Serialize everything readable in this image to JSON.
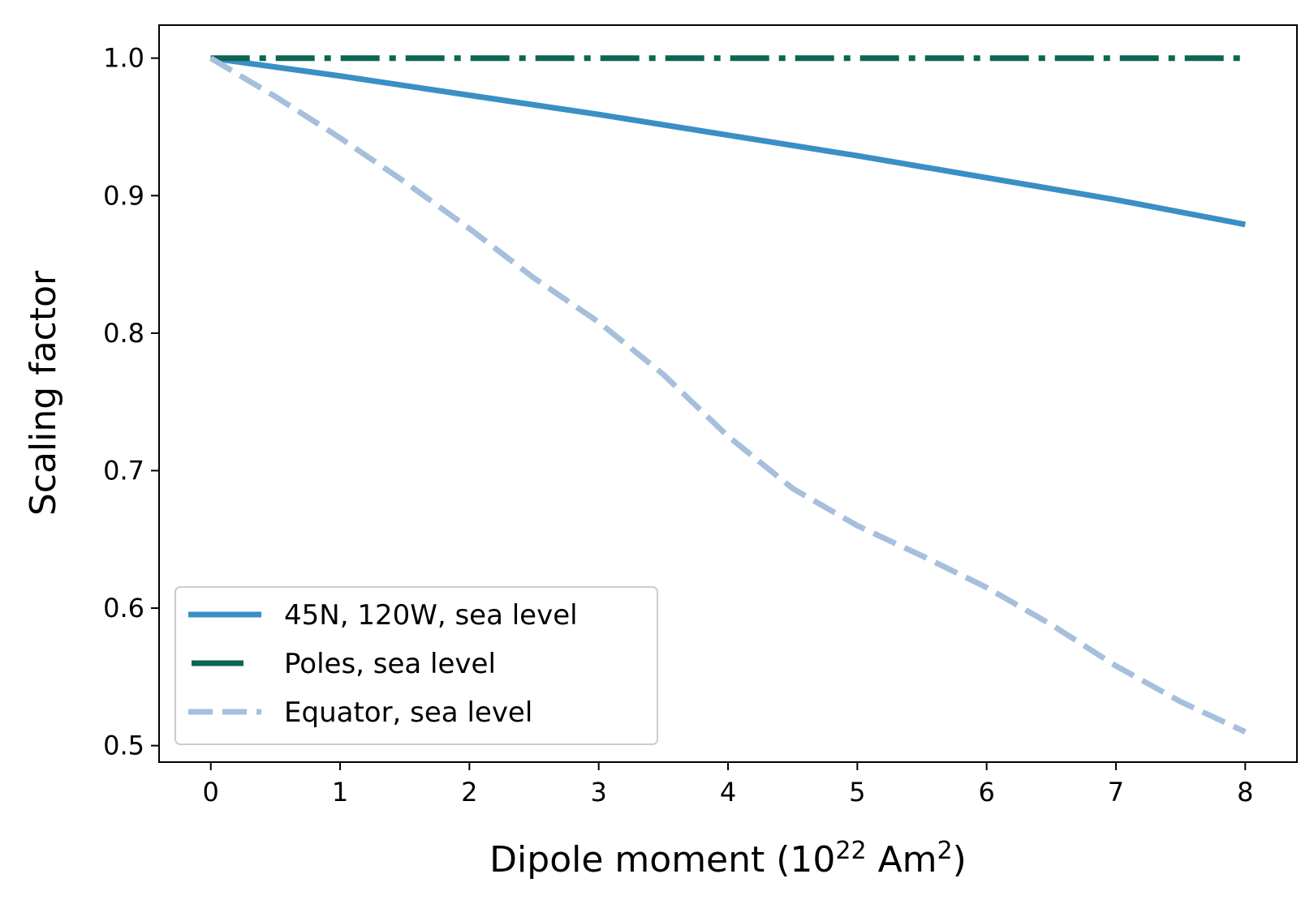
{
  "chart_data": {
    "type": "line",
    "title": "",
    "xlabel": {
      "text": "Dipole moment (10",
      "sup1": "22",
      "mid": " Am",
      "sup2": "2",
      "end": ")"
    },
    "ylabel": "Scaling factor",
    "xlim": [
      -0.4,
      8.4
    ],
    "ylim": [
      0.488,
      1.024
    ],
    "xticks": [
      0,
      1,
      2,
      3,
      4,
      5,
      6,
      7,
      8
    ],
    "xtick_labels": [
      "0",
      "1",
      "2",
      "3",
      "4",
      "5",
      "6",
      "7",
      "8"
    ],
    "yticks": [
      0.5,
      0.6,
      0.7,
      0.8,
      0.9,
      1.0
    ],
    "ytick_labels": [
      "0.5",
      "0.6",
      "0.7",
      "0.8",
      "0.9",
      "1.0"
    ],
    "grid": false,
    "legend_position": "lower-left",
    "series": [
      {
        "name": "45N, 120W, sea level",
        "color": "#3a8fc4",
        "style": "solid",
        "x": [
          0,
          1,
          2,
          3,
          4,
          5,
          6,
          7,
          8
        ],
        "y": [
          1.0,
          0.987,
          0.973,
          0.959,
          0.944,
          0.929,
          0.913,
          0.897,
          0.879
        ]
      },
      {
        "name": "Poles, sea level",
        "color": "#0b6652",
        "style": "dashdot",
        "x": [
          0,
          8
        ],
        "y": [
          1.0,
          1.0
        ]
      },
      {
        "name": "Equator, sea level",
        "color": "#a6bfdd",
        "style": "dashed",
        "x": [
          0,
          0.5,
          1,
          1.5,
          2,
          2.5,
          3,
          3.5,
          4,
          4.5,
          5,
          5.5,
          6,
          6.5,
          7,
          7.5,
          8
        ],
        "y": [
          1.0,
          0.972,
          0.942,
          0.91,
          0.876,
          0.84,
          0.808,
          0.77,
          0.725,
          0.687,
          0.66,
          0.638,
          0.615,
          0.588,
          0.558,
          0.532,
          0.51
        ]
      }
    ]
  }
}
